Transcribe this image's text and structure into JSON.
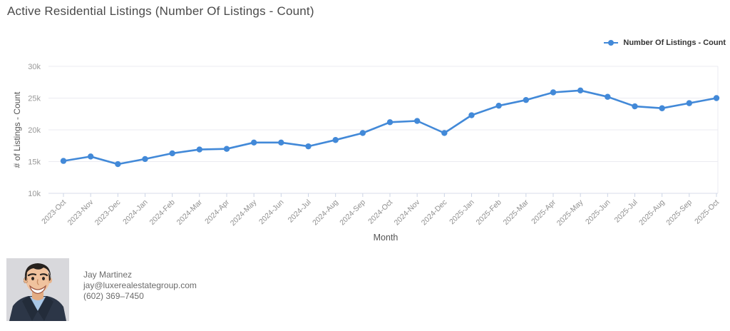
{
  "header": {
    "title": "Active Residential Listings (Number Of Listings - Count)"
  },
  "legend": {
    "label": "Number Of Listings - Count",
    "color": "#4289d8",
    "marker_icon": "line-dot-marker"
  },
  "chart_data": {
    "type": "line",
    "title": "Active Residential Listings (Number Of Listings - Count)",
    "xlabel": "Month",
    "ylabel": "# of Listings - Count",
    "ylim": [
      10000,
      30000
    ],
    "yticks": [
      10000,
      15000,
      20000,
      25000,
      30000
    ],
    "ytick_labels": [
      "10k",
      "15k",
      "20k",
      "25k",
      "30k"
    ],
    "grid": "horizontal",
    "legend_position": "top-right",
    "categories": [
      "2023-Oct",
      "2023-Nov",
      "2023-Dec",
      "2024-Jan",
      "2024-Feb",
      "2024-Mar",
      "2024-Apr",
      "2024-May",
      "2024-Jun",
      "2024-Jul",
      "2024-Aug",
      "2024-Sep",
      "2024-Oct",
      "2024-Nov",
      "2024-Dec",
      "2025-Jan",
      "2025-Feb",
      "2025-Mar",
      "2025-Apr",
      "2025-May",
      "2025-Jun",
      "2025-Jul",
      "2025-Aug",
      "2025-Sep",
      "2025-Oct"
    ],
    "series": [
      {
        "name": "Number Of Listings - Count",
        "color": "#4289d8",
        "values": [
          15100,
          15800,
          14600,
          15400,
          16300,
          16900,
          17000,
          18000,
          18000,
          17400,
          18400,
          19500,
          21200,
          21400,
          19500,
          22300,
          23800,
          24700,
          25900,
          26200,
          25200,
          23700,
          23400,
          24200,
          25000
        ]
      }
    ],
    "colors": {
      "gridline": "#ebebf1",
      "axis_line": "#d9dde9",
      "tick_mark": "#ccd4e6",
      "tick_label": "#8f8f8f",
      "axis_title": "#555555"
    }
  },
  "contact": {
    "name": "Jay Martinez",
    "email": "jay@luxerealestategroup.com",
    "phone": "(602) 369–7450",
    "avatar": "cartoon-headshot-smiling-man-navy-blazer-blue-shirt"
  }
}
